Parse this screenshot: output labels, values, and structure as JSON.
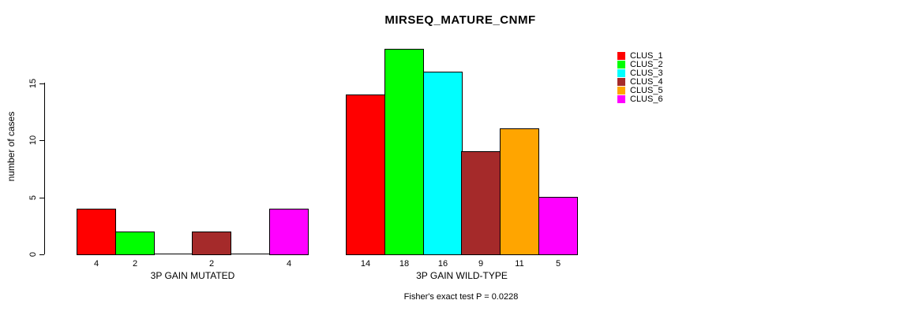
{
  "chart_data": {
    "type": "bar",
    "title": "MIRSEQ_MATURE_CNMF",
    "ylabel": "number of cases",
    "ylim": [
      0,
      18
    ],
    "yticks": [
      0,
      5,
      10,
      15
    ],
    "grid": false,
    "legend_position": "top-right",
    "categories": [
      "3P GAIN MUTATED",
      "3P GAIN WILD-TYPE"
    ],
    "series": [
      {
        "name": "CLUS_1",
        "color": "#FF0000",
        "values": [
          4,
          14
        ]
      },
      {
        "name": "CLUS_2",
        "color": "#00FF00",
        "values": [
          2,
          18
        ]
      },
      {
        "name": "CLUS_3",
        "color": "#00FFFF",
        "values": [
          0,
          16
        ]
      },
      {
        "name": "CLUS_4",
        "color": "#A52A2A",
        "values": [
          2,
          9
        ]
      },
      {
        "name": "CLUS_5",
        "color": "#FFA500",
        "values": [
          0,
          11
        ]
      },
      {
        "name": "CLUS_6",
        "color": "#FF00FF",
        "values": [
          4,
          5
        ]
      }
    ],
    "bar_value_labels": {
      "shown": true,
      "zeros_omitted": true
    },
    "annotation": "Fisher's exact test P = 0.0228"
  }
}
